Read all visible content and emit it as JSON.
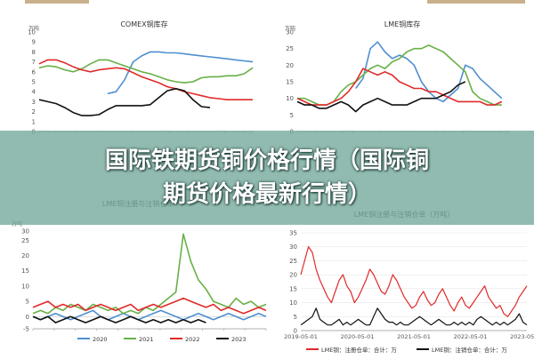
{
  "banner": {
    "line1": "国际铁期货铜价格行情（国际铜",
    "line2": "期货价格最新行情）"
  },
  "colors": {
    "c2020": "#4f8fd0",
    "c2021": "#68b046",
    "c2022": "#e02a2a",
    "c2023": "#111111",
    "banner": "#76aa9e"
  },
  "chart_data": [
    {
      "type": "line",
      "title": "COMEX铜库存",
      "ylabel": "万吨",
      "ylim": [
        0,
        10
      ],
      "yticks": [
        "0",
        "1",
        "2",
        "3",
        "4",
        "5",
        "6",
        "7",
        "8",
        "9",
        "10"
      ],
      "x_count": 26,
      "series": [
        {
          "color": "#4f8fd0",
          "values": [
            null,
            null,
            null,
            null,
            null,
            null,
            null,
            null,
            3.8,
            4.0,
            5.2,
            7.0,
            7.6,
            8.0,
            8.0,
            7.9,
            7.9,
            7.8,
            7.7,
            7.6,
            7.5,
            7.4,
            7.3,
            7.2,
            7.1,
            7.0
          ]
        },
        {
          "color": "#68b046",
          "values": [
            6.4,
            6.6,
            6.5,
            6.2,
            6.0,
            6.3,
            6.8,
            7.2,
            7.2,
            6.9,
            6.6,
            6.3,
            6.0,
            5.8,
            5.5,
            5.2,
            5.0,
            4.9,
            5.0,
            5.4,
            5.5,
            5.5,
            5.6,
            5.6,
            5.8,
            6.4
          ]
        },
        {
          "color": "#e02a2a",
          "values": [
            6.8,
            7.2,
            7.2,
            6.9,
            6.5,
            6.2,
            6.0,
            6.2,
            6.3,
            6.4,
            6.3,
            5.9,
            5.5,
            5.2,
            4.9,
            4.5,
            4.3,
            4.0,
            3.8,
            3.6,
            3.4,
            3.3,
            3.2,
            3.2,
            3.2,
            3.2
          ]
        },
        {
          "color": "#111111",
          "values": [
            3.2,
            3.0,
            2.8,
            2.4,
            1.9,
            1.6,
            1.6,
            1.7,
            2.2,
            2.6,
            2.6,
            2.6,
            2.6,
            2.7,
            3.4,
            4.1,
            4.3,
            4.1,
            3.2,
            2.5,
            2.4,
            null,
            null,
            null,
            null,
            null
          ]
        }
      ]
    },
    {
      "type": "line",
      "title": "LME铜库存",
      "ylabel": "万吨",
      "ylim": [
        0,
        30
      ],
      "yticks": [
        "0",
        "5",
        "10",
        "15",
        "20",
        "25",
        "30"
      ],
      "x_count": 30,
      "series": [
        {
          "color": "#4f8fd0",
          "values": [
            null,
            null,
            null,
            null,
            null,
            null,
            null,
            null,
            13,
            16,
            25,
            27,
            24,
            22,
            23,
            22,
            20,
            15,
            12,
            10,
            9,
            11,
            13,
            20,
            19,
            16,
            14,
            12,
            10,
            null
          ]
        },
        {
          "color": "#68b046",
          "values": [
            10,
            10,
            9,
            8,
            8,
            9,
            12,
            14,
            15,
            17,
            19,
            20,
            19,
            21,
            22,
            24,
            25,
            25,
            26,
            25,
            24,
            22,
            20,
            18,
            12,
            10,
            9,
            8,
            8,
            null
          ]
        },
        {
          "color": "#e02a2a",
          "values": [
            10,
            9,
            8,
            8,
            8,
            9,
            10,
            12,
            15,
            19,
            18,
            17,
            18,
            17,
            15,
            14,
            13,
            13,
            12,
            12,
            11,
            10,
            9,
            9,
            9,
            9,
            8,
            8,
            9,
            null
          ]
        },
        {
          "color": "#111111",
          "values": [
            9,
            8,
            8,
            7,
            7,
            8,
            9,
            8,
            6,
            8,
            9,
            10,
            9,
            8,
            8,
            8,
            9,
            10,
            10,
            10,
            11,
            12,
            14,
            15,
            null,
            null,
            null,
            null,
            null,
            null
          ]
        }
      ]
    },
    {
      "type": "line",
      "title": "LME铜注册与注销仓单",
      "ylabel": "万吨",
      "ylim": [
        -4,
        28
      ],
      "yticks": [
        "-5",
        "0",
        "5",
        "10",
        "15",
        "20",
        "25",
        "30"
      ],
      "x_count": 32,
      "legend": [
        "2020",
        "2021",
        "2022",
        "2023"
      ],
      "series": [
        {
          "color": "#4f8fd0",
          "values": [
            0,
            -1,
            0,
            1,
            0,
            -1,
            0,
            1,
            2,
            0,
            -1,
            0,
            1,
            0,
            -1,
            0,
            1,
            2,
            1,
            0,
            -1,
            0,
            1,
            0,
            -1,
            0,
            1,
            0,
            -1,
            0,
            1,
            0
          ]
        },
        {
          "color": "#68b046",
          "values": [
            1,
            2,
            1,
            3,
            2,
            4,
            3,
            2,
            4,
            3,
            2,
            3,
            1,
            2,
            1,
            3,
            2,
            4,
            6,
            8,
            27,
            18,
            12,
            9,
            5,
            4,
            3,
            6,
            4,
            5,
            3,
            4
          ]
        },
        {
          "color": "#e02a2a",
          "values": [
            3,
            4,
            5,
            3,
            4,
            3,
            4,
            2,
            3,
            4,
            3,
            2,
            3,
            4,
            2,
            3,
            4,
            3,
            4,
            5,
            6,
            5,
            4,
            3,
            4,
            2,
            3,
            2,
            1,
            2,
            3,
            2
          ]
        },
        {
          "color": "#111111",
          "values": [
            0,
            -1,
            0,
            -2,
            -1,
            0,
            -1,
            -2,
            -1,
            0,
            -1,
            -2,
            -1,
            0,
            -1,
            -2,
            -1,
            -2,
            -1,
            -2,
            -1,
            -2,
            -1,
            -2,
            null,
            null,
            null,
            null,
            null,
            null,
            null,
            null
          ]
        }
      ]
    },
    {
      "type": "line",
      "title": "LME铜注册与注销仓单（万吨）",
      "ylim": [
        0,
        35
      ],
      "yticks": [
        "0",
        "5",
        "10",
        "15",
        "20",
        "25",
        "30",
        "35"
      ],
      "xticks": [
        "2019-05-01",
        "2020-05-01",
        "2021-05-01",
        "2022-05-01",
        "2023-05-01"
      ],
      "x_count": 60,
      "legend": [
        "LME铜：注册仓单：合计：万",
        "LME铜：注销仓单：合计：万"
      ],
      "series": [
        {
          "color": "#e02a2a",
          "values": [
            20,
            25,
            30,
            28,
            22,
            18,
            15,
            12,
            10,
            14,
            18,
            20,
            16,
            14,
            10,
            12,
            15,
            18,
            22,
            20,
            17,
            14,
            13,
            16,
            20,
            18,
            15,
            12,
            10,
            8,
            9,
            12,
            14,
            11,
            9,
            10,
            13,
            15,
            12,
            9,
            7,
            10,
            12,
            9,
            8,
            10,
            12,
            14,
            16,
            12,
            10,
            8,
            9,
            6,
            5,
            7,
            9,
            12,
            14,
            16
          ]
        },
        {
          "color": "#111111",
          "values": [
            2,
            3,
            4,
            5,
            8,
            4,
            3,
            2,
            2,
            3,
            4,
            2,
            3,
            2,
            3,
            4,
            3,
            2,
            2,
            5,
            8,
            6,
            4,
            3,
            3,
            2,
            3,
            2,
            2,
            3,
            4,
            5,
            4,
            3,
            2,
            3,
            4,
            3,
            2,
            2,
            3,
            2,
            3,
            2,
            3,
            2,
            4,
            5,
            4,
            3,
            2,
            3,
            2,
            3,
            2,
            3,
            4,
            6,
            3,
            2
          ]
        }
      ]
    }
  ]
}
